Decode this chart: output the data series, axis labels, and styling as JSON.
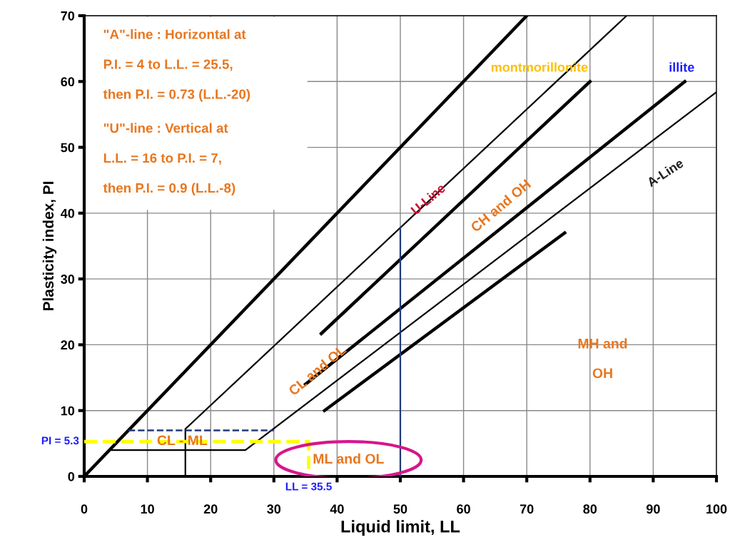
{
  "chart_data": {
    "type": "line",
    "xlabel": "Liquid limit, LL",
    "ylabel": "Plasticity index, PI",
    "xlim": [
      0,
      100
    ],
    "xticks": [
      0,
      10,
      20,
      30,
      40,
      50,
      60,
      70,
      80,
      90,
      100
    ],
    "ylim": [
      0,
      70
    ],
    "yticks": [
      0,
      10,
      20,
      30,
      40,
      50,
      60,
      70
    ],
    "grid": true,
    "marker": "none",
    "series": [
      {
        "color": "#000000",
        "x": [
          0,
          70
        ],
        "values": [
          0,
          70
        ]
      },
      {
        "color": "#000000",
        "x": [
          16,
          16,
          85.8
        ],
        "values": [
          0,
          7.2,
          70
        ]
      },
      {
        "color": "#000000",
        "x": [
          4,
          25.5,
          100
        ],
        "values": [
          4,
          4,
          58.4
        ]
      },
      {
        "color": "#000000",
        "x": [
          37.5,
          80
        ],
        "values": [
          21.7,
          60
        ]
      },
      {
        "color": "#000000",
        "x": [
          35,
          95
        ],
        "values": [
          14,
          60
        ]
      },
      {
        "color": "#000000",
        "x": [
          38,
          76
        ],
        "values": [
          10,
          37
        ]
      },
      {
        "color": "#1f3a7a",
        "x": [
          50,
          50
        ],
        "values": [
          0,
          37.8
        ]
      },
      {
        "color": "#1f3a7a",
        "x": [
          7,
          30
        ],
        "values": [
          7,
          7
        ],
        "line_style": "dashed"
      },
      {
        "color": "#ffff00",
        "x": [
          0,
          35.5,
          35.5
        ],
        "values": [
          5.3,
          5.3,
          0
        ],
        "line_style": "dashed"
      }
    ],
    "annotations": [
      "\"A\"-line : Horizontal at",
      "P.I. = 4 to L.L. = 25.5,",
      "then P.I. = 0.73 (L.L.-20)",
      "\"U\"-line : Vertical at",
      "L.L. = 16 to P.I. = 7,",
      "then P.I. = 0.9 (L.L.-8)",
      "montmorillonite",
      "illite",
      {
        "text": "U-Line",
        "x": 54.5,
        "y": 42
      },
      "CH and OH",
      "A-Line",
      {
        "text": "CL and OL",
        "x": 37,
        "y": 16
      },
      "MH and",
      "OH",
      {
        "text": "CL - ML",
        "x": 15.5,
        "y": 5.3
      },
      "ML and OL",
      {
        "text": "PI = 5.3",
        "x": 0,
        "y": 5.3
      },
      {
        "text": "LL = 35.5",
        "x": 35.5,
        "y": 0
      }
    ]
  }
}
